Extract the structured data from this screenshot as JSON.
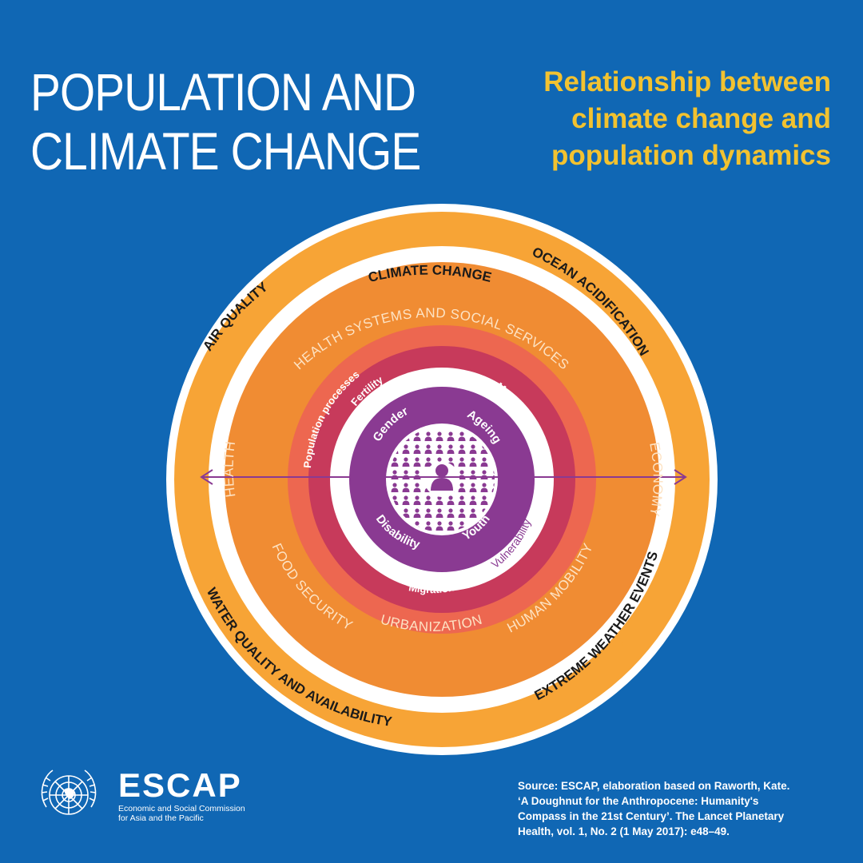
{
  "title_lines": [
    "POPULATION AND",
    "CLIMATE CHANGE"
  ],
  "subtitle_lines": [
    "Relationship between",
    "climate change and",
    "population dynamics"
  ],
  "outer_ring": {
    "top": "CLIMATE CHANGE",
    "top_right": "OCEAN ACIDIFICATION",
    "top_left": "AIR QUALITY",
    "bottom_left": "WATER QUALITY AND AVAILABILITY",
    "bottom_right": "EXTREME WEATHER EVENTS"
  },
  "orange_ring": {
    "top": "HEALTH SYSTEMS AND SOCIAL SERVICES",
    "left": "HEALTH",
    "right": "ECONOMY",
    "bottom_left": "FOOD SECURITY",
    "bottom": "URBANIZATION",
    "bottom_right": "HUMAN MOBILITY"
  },
  "salmon_ring": {
    "label": "Population processes"
  },
  "crimson_ring": {
    "fertility": "Fertility",
    "mortality": "Mortality",
    "migration": "Migration"
  },
  "vulnerability": "Vulnerability",
  "purple_ring": {
    "gender": "Gender",
    "ageing": "Ageing",
    "disability": "Disability",
    "youth": "Youth"
  },
  "colors": {
    "background": "#1067b4",
    "outer_ring": "#f7a436",
    "orange_ring": "#f08c33",
    "salmon_ring": "#ed6750",
    "crimson_ring": "#c73a5b",
    "purple": "#8a3a92",
    "title": "#ffffff",
    "subtitle": "#f2c230"
  },
  "logo": {
    "name": "ESCAP",
    "subtitle_lines": [
      "Economic and Social Commission",
      "for Asia and the Pacific"
    ]
  },
  "source_lines": [
    "Source: ESCAP, elaboration based on Raworth, Kate.",
    "‘A Doughnut for the Anthropocene: Humanity's",
    "Compass in the 21st Century’. The Lancet Planetary",
    "Health, vol. 1, No. 2 (1 May 2017): e48–49."
  ]
}
